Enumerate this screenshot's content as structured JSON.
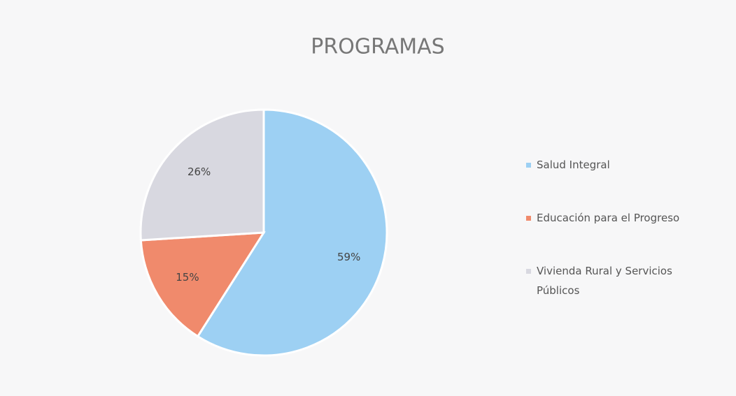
{
  "chart_data": {
    "type": "pie",
    "title": "PROGRAMAS",
    "categories": [
      "Salud Integral",
      "Educación para el Progreso",
      "Vivienda Rural y Servicios Públicos"
    ],
    "values": [
      59,
      15,
      26
    ],
    "value_labels": [
      "59%",
      "15%",
      "26%"
    ],
    "colors": [
      "#9dd0f3",
      "#f08a6c",
      "#d8d8e0"
    ],
    "legend": "right"
  }
}
